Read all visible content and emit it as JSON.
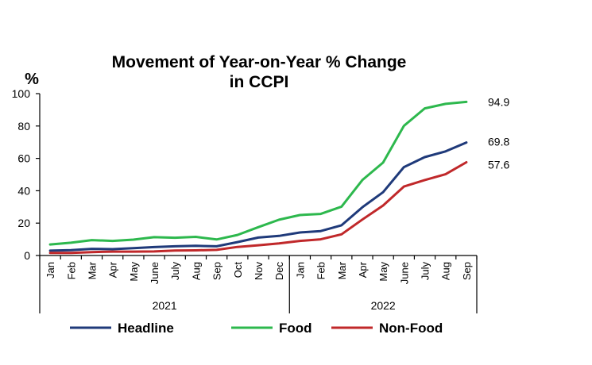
{
  "chart_data": {
    "type": "line",
    "title_line1": "Movement of Year-on-Year % Change",
    "title_line2": "in CCPI",
    "ylabel": "%",
    "ylim": [
      0,
      100
    ],
    "yticks": [
      0,
      20,
      40,
      60,
      80,
      100
    ],
    "categories": [
      "Jan",
      "Feb",
      "Mar",
      "Apr",
      "May",
      "June",
      "July",
      "Aug",
      "Sep",
      "Oct",
      "Nov",
      "Dec",
      "Jan",
      "Feb",
      "Mar",
      "Apr",
      "May",
      "June",
      "July",
      "Aug",
      "Sep"
    ],
    "year_groups": [
      {
        "label": "2021",
        "count": 12
      },
      {
        "label": "2022",
        "count": 9
      }
    ],
    "series": [
      {
        "name": "Headline",
        "color": "#1f3a7a",
        "end_label": "69.8",
        "values": [
          3.0,
          3.3,
          4.1,
          3.9,
          4.5,
          5.2,
          5.7,
          6.0,
          5.7,
          8.3,
          11.1,
          12.1,
          14.2,
          15.1,
          18.7,
          29.8,
          39.1,
          54.6,
          60.8,
          64.3,
          69.8
        ]
      },
      {
        "name": "Food",
        "color": "#2db84d",
        "end_label": "94.9",
        "values": [
          6.8,
          7.9,
          9.5,
          9.0,
          9.8,
          11.3,
          11.0,
          11.5,
          9.9,
          12.7,
          17.5,
          22.1,
          25.0,
          25.7,
          30.2,
          46.6,
          57.4,
          80.1,
          90.9,
          93.7,
          94.9
        ]
      },
      {
        "name": "Non-Food",
        "color": "#c0282a",
        "end_label": "57.6",
        "values": [
          1.6,
          1.6,
          2.1,
          2.4,
          2.4,
          2.5,
          3.1,
          3.2,
          3.5,
          5.3,
          6.3,
          7.5,
          9.0,
          10.0,
          13.1,
          22.2,
          30.9,
          42.6,
          46.6,
          50.2,
          57.6
        ]
      }
    ],
    "legend_position": "bottom",
    "grid": false
  }
}
